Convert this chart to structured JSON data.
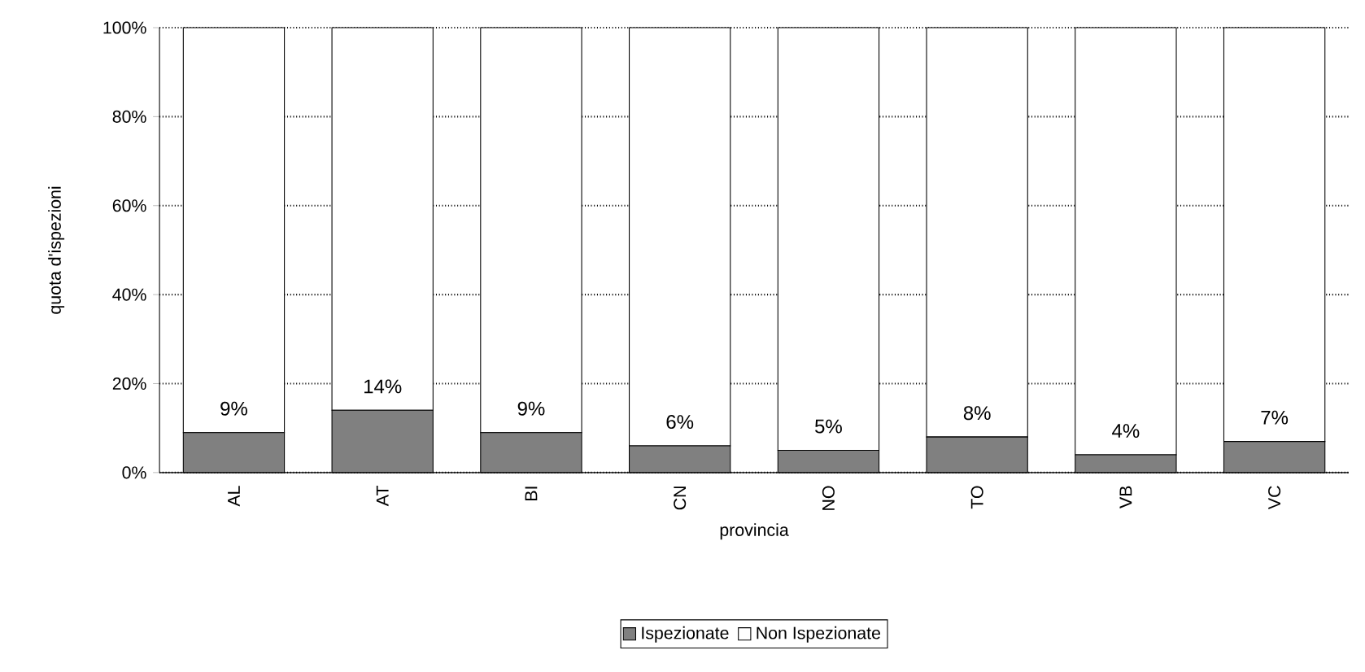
{
  "chart_data": {
    "type": "bar",
    "stacked": true,
    "xlabel": "provincia",
    "ylabel": "quota d'ispezioni",
    "categories": [
      "AL",
      "AT",
      "BI",
      "CN",
      "NO",
      "TO",
      "VB",
      "VC"
    ],
    "series": [
      {
        "name": "Ispezionate",
        "color": "#808080",
        "values": [
          9,
          14,
          9,
          6,
          5,
          8,
          4,
          7
        ],
        "value_labels": [
          "9%",
          "14%",
          "9%",
          "6%",
          "5%",
          "8%",
          "4%",
          "7%"
        ]
      },
      {
        "name": "Non Ispezionate",
        "color": "#ffffff",
        "values": [
          91,
          86,
          91,
          94,
          95,
          92,
          96,
          93
        ]
      }
    ],
    "ylim": [
      0,
      100
    ],
    "yticks": [
      {
        "value": 0,
        "label": "0%"
      },
      {
        "value": 20,
        "label": "20%"
      },
      {
        "value": 40,
        "label": "40%"
      },
      {
        "value": 60,
        "label": "60%"
      },
      {
        "value": 80,
        "label": "80%"
      },
      {
        "value": 100,
        "label": "100%"
      }
    ],
    "grid": "y",
    "legend": "bottom"
  }
}
